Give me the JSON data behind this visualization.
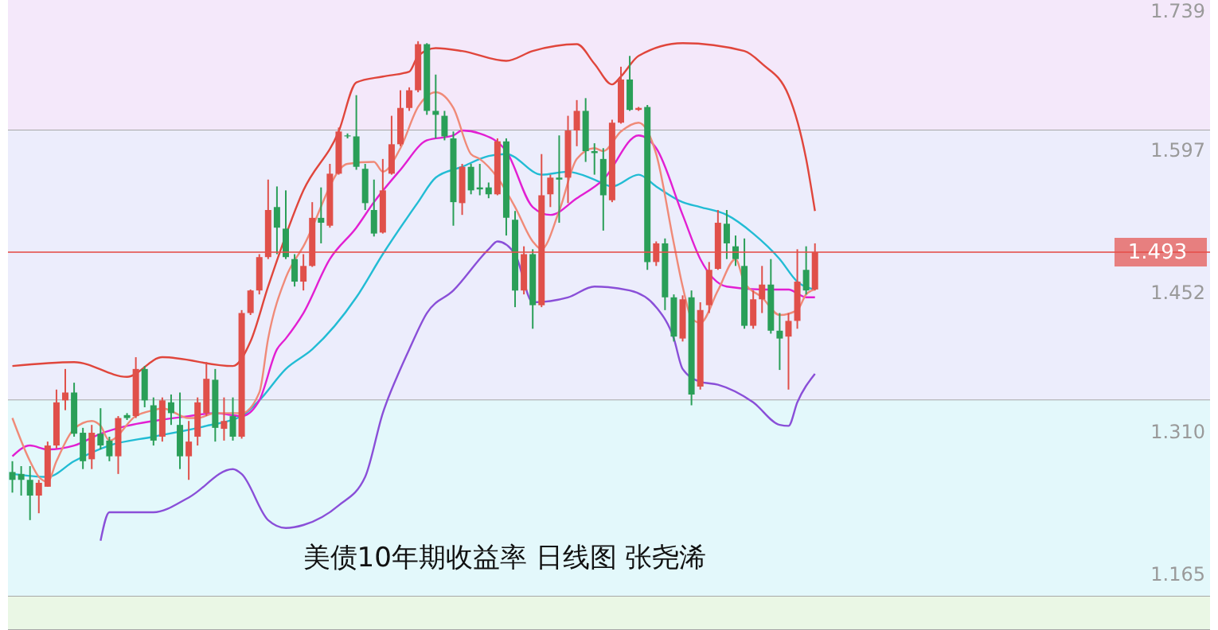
{
  "chart_data": {
    "type": "candlestick",
    "categories": [
      null,
      null,
      null,
      null,
      null,
      null,
      null,
      null,
      null,
      null,
      null,
      null,
      null,
      null,
      null,
      null,
      null,
      null,
      null,
      null,
      null,
      null,
      null,
      null,
      null,
      null,
      null,
      null,
      null,
      null,
      null,
      null,
      null,
      null,
      null,
      null,
      null,
      null,
      null,
      null,
      null,
      null,
      null,
      null,
      null,
      null,
      null,
      null,
      null,
      null,
      null,
      null,
      null,
      null,
      null,
      null,
      null,
      null,
      null,
      null,
      null,
      null,
      null,
      null,
      null,
      null,
      null,
      null,
      null,
      null,
      null,
      null,
      null,
      null,
      null,
      null,
      null,
      null,
      null,
      null,
      null,
      null,
      null,
      null,
      null,
      null,
      null,
      null,
      null,
      null,
      null,
      null
    ],
    "ohlc": [
      [
        1.269,
        1.28,
        1.248,
        1.261
      ],
      [
        1.267,
        1.275,
        1.245,
        1.261
      ],
      [
        1.261,
        1.275,
        1.22,
        1.245
      ],
      [
        1.245,
        1.261,
        1.227,
        1.258
      ],
      [
        1.254,
        1.3,
        1.254,
        1.296
      ],
      [
        1.296,
        1.353,
        1.293,
        1.34
      ],
      [
        1.342,
        1.374,
        1.332,
        1.35
      ],
      [
        1.35,
        1.36,
        1.305,
        1.308
      ],
      [
        1.309,
        1.314,
        1.272,
        1.28
      ],
      [
        1.282,
        1.317,
        1.272,
        1.309
      ],
      [
        1.308,
        1.334,
        1.292,
        1.296
      ],
      [
        1.301,
        1.305,
        1.28,
        1.285
      ],
      [
        1.285,
        1.326,
        1.267,
        1.324
      ],
      [
        1.327,
        1.329,
        1.322,
        1.324
      ],
      [
        1.326,
        1.386,
        1.324,
        1.374
      ],
      [
        1.374,
        1.377,
        1.335,
        1.342
      ],
      [
        1.337,
        1.345,
        1.296,
        1.301
      ],
      [
        1.305,
        1.345,
        1.3,
        1.342
      ],
      [
        1.34,
        1.348,
        1.317,
        1.329
      ],
      [
        1.317,
        1.35,
        1.272,
        1.285
      ],
      [
        1.285,
        1.321,
        1.261,
        1.3
      ],
      [
        1.305,
        1.345,
        1.296,
        1.34
      ],
      [
        1.329,
        1.381,
        1.326,
        1.364
      ],
      [
        1.363,
        1.374,
        1.3,
        1.314
      ],
      [
        1.313,
        1.345,
        1.301,
        1.321
      ],
      [
        1.326,
        1.345,
        1.301,
        1.305
      ],
      [
        1.305,
        1.434,
        1.303,
        1.431
      ],
      [
        1.431,
        1.455,
        1.429,
        1.454
      ],
      [
        1.454,
        1.491,
        1.45,
        1.488
      ],
      [
        1.488,
        1.567,
        1.486,
        1.536
      ],
      [
        1.539,
        1.56,
        1.491,
        1.518
      ],
      [
        1.517,
        1.556,
        1.486,
        1.488
      ],
      [
        1.486,
        1.491,
        1.458,
        1.463
      ],
      [
        1.463,
        1.491,
        1.454,
        1.479
      ],
      [
        1.479,
        1.544,
        1.478,
        1.528
      ],
      [
        1.528,
        1.559,
        1.502,
        1.523
      ],
      [
        1.52,
        1.583,
        1.518,
        1.573
      ],
      [
        1.573,
        1.62,
        1.572,
        1.616
      ],
      [
        1.612,
        1.614,
        1.609,
        1.611
      ],
      [
        1.611,
        1.653,
        1.577,
        1.58
      ],
      [
        1.578,
        1.583,
        1.536,
        1.543
      ],
      [
        1.536,
        1.567,
        1.509,
        1.512
      ],
      [
        1.513,
        1.588,
        1.512,
        1.556
      ],
      [
        1.573,
        1.632,
        1.572,
        1.603
      ],
      [
        1.603,
        1.658,
        1.601,
        1.64
      ],
      [
        1.64,
        1.661,
        1.637,
        1.658
      ],
      [
        1.658,
        1.708,
        1.656,
        1.705
      ],
      [
        1.705,
        1.706,
        1.633,
        1.637
      ],
      [
        1.637,
        1.674,
        1.609,
        1.633
      ],
      [
        1.632,
        1.637,
        1.607,
        1.611
      ],
      [
        1.609,
        1.616,
        1.52,
        1.544
      ],
      [
        1.543,
        1.583,
        1.531,
        1.58
      ],
      [
        1.58,
        1.583,
        1.552,
        1.556
      ],
      [
        1.559,
        1.583,
        1.551,
        1.557
      ],
      [
        1.559,
        1.564,
        1.548,
        1.552
      ],
      [
        1.552,
        1.609,
        1.551,
        1.606
      ],
      [
        1.606,
        1.609,
        1.51,
        1.528
      ],
      [
        1.526,
        1.535,
        1.437,
        1.454
      ],
      [
        1.454,
        1.499,
        1.45,
        1.491
      ],
      [
        1.491,
        1.496,
        1.415,
        1.439
      ],
      [
        1.439,
        1.593,
        1.437,
        1.551
      ],
      [
        1.552,
        1.572,
        1.539,
        1.569
      ],
      [
        1.569,
        1.612,
        1.523,
        1.567
      ],
      [
        1.569,
        1.632,
        1.543,
        1.617
      ],
      [
        1.617,
        1.648,
        1.601,
        1.637
      ],
      [
        1.637,
        1.65,
        1.585,
        1.596
      ],
      [
        1.596,
        1.604,
        1.572,
        1.594
      ],
      [
        1.588,
        1.599,
        1.515,
        1.551
      ],
      [
        1.546,
        1.628,
        1.544,
        1.625
      ],
      [
        1.625,
        1.682,
        1.624,
        1.669
      ],
      [
        1.669,
        1.693,
        1.637,
        1.638
      ],
      [
        1.638,
        1.641,
        1.637,
        1.64
      ],
      [
        1.641,
        1.643,
        1.475,
        1.483
      ],
      [
        1.483,
        1.504,
        1.479,
        1.502
      ],
      [
        1.502,
        1.507,
        1.434,
        1.447
      ],
      [
        1.447,
        1.45,
        1.402,
        1.407
      ],
      [
        1.405,
        1.449,
        1.402,
        1.445
      ],
      [
        1.447,
        1.454,
        1.337,
        1.348
      ],
      [
        1.356,
        1.442,
        1.353,
        1.434
      ],
      [
        1.439,
        1.483,
        1.431,
        1.475
      ],
      [
        1.476,
        1.536,
        1.475,
        1.523
      ],
      [
        1.522,
        1.536,
        1.486,
        1.502
      ],
      [
        1.499,
        1.51,
        1.479,
        1.486
      ],
      [
        1.479,
        1.507,
        1.415,
        1.418
      ],
      [
        1.418,
        1.454,
        1.415,
        1.445
      ],
      [
        1.445,
        1.479,
        1.431,
        1.46
      ],
      [
        1.46,
        1.486,
        1.41,
        1.413
      ],
      [
        1.413,
        1.431,
        1.373,
        1.405
      ],
      [
        1.407,
        1.431,
        1.353,
        1.423
      ],
      [
        1.423,
        1.496,
        1.415,
        1.463
      ],
      [
        1.475,
        1.499,
        1.45,
        1.454
      ],
      [
        1.455,
        1.502,
        1.454,
        1.493
      ]
    ],
    "series": [
      {
        "type": "line",
        "color": "#e0463c",
        "values": [
          1.377,
          null,
          null,
          null,
          null,
          null,
          null,
          1.381,
          null,
          null,
          null,
          null,
          null,
          1.366,
          null,
          null,
          null,
          1.386,
          null,
          null,
          null,
          null,
          null,
          null,
          null,
          1.377,
          null,
          1.402,
          null,
          1.458,
          null,
          null,
          null,
          1.556,
          null,
          null,
          null,
          1.616,
          null,
          1.666,
          null,
          null,
          1.672,
          null,
          null,
          1.677,
          1.693,
          null,
          1.701,
          null,
          null,
          1.698,
          null,
          null,
          null,
          null,
          1.688,
          null,
          null,
          1.698,
          null,
          null,
          null,
          null,
          1.705,
          null,
          1.685,
          null,
          1.664,
          1.672,
          null,
          1.693,
          null,
          null,
          null,
          null,
          1.706,
          null,
          null,
          null,
          null,
          null,
          null,
          1.698,
          null,
          1.685,
          null,
          null,
          1.653,
          null,
          1.588,
          1.535
        ]
      },
      {
        "type": "line",
        "color": "#8a4fd8",
        "values": [
          null,
          null,
          null,
          null,
          null,
          null,
          null,
          null,
          null,
          null,
          1.199,
          1.228,
          null,
          null,
          null,
          null,
          1.228,
          null,
          null,
          null,
          1.243,
          null,
          null,
          null,
          null,
          1.272,
          1.267,
          null,
          null,
          1.22,
          null,
          1.212,
          null,
          1.215,
          null,
          null,
          null,
          1.235,
          null,
          null,
          1.264,
          null,
          1.329,
          null,
          1.374,
          1.394,
          null,
          1.431,
          null,
          null,
          1.454,
          null,
          null,
          null,
          1.496,
          1.504,
          null,
          1.491,
          null,
          1.442,
          null,
          null,
          null,
          1.447,
          null,
          null,
          1.458,
          null,
          null,
          null,
          1.454,
          null,
          null,
          1.437,
          null,
          1.405,
          1.374,
          null,
          1.361,
          null,
          1.358,
          null,
          null,
          null,
          1.34,
          null,
          null,
          1.317,
          1.316,
          1.34,
          null,
          1.369
        ]
      },
      {
        "type": "line",
        "color": "#22bcd4",
        "values": [
          1.267,
          null,
          null,
          null,
          1.264,
          null,
          null,
          1.28,
          null,
          null,
          null,
          1.296,
          null,
          null,
          null,
          null,
          1.305,
          null,
          null,
          null,
          null,
          null,
          1.316,
          null,
          null,
          null,
          1.326,
          null,
          1.342,
          null,
          null,
          1.374,
          null,
          null,
          1.394,
          null,
          null,
          null,
          null,
          1.447,
          null,
          null,
          1.491,
          null,
          null,
          null,
          1.544,
          null,
          1.569,
          null,
          null,
          1.58,
          null,
          null,
          1.591,
          null,
          1.593,
          null,
          null,
          null,
          1.572,
          null,
          null,
          1.575,
          null,
          null,
          1.567,
          null,
          1.56,
          null,
          null,
          1.572,
          null,
          1.56,
          null,
          null,
          1.544,
          null,
          1.539,
          null,
          null,
          1.531,
          null,
          null,
          1.512,
          null,
          null,
          1.486,
          null,
          1.463,
          null,
          1.455
        ]
      },
      {
        "type": "line",
        "color": "#e21fd2",
        "values": [
          1.285,
          null,
          1.296,
          null,
          1.292,
          null,
          null,
          1.296,
          null,
          null,
          1.308,
          null,
          null,
          1.316,
          null,
          null,
          1.321,
          null,
          null,
          null,
          1.326,
          null,
          null,
          1.329,
          null,
          null,
          1.326,
          null,
          1.342,
          null,
          1.394,
          1.405,
          null,
          1.431,
          null,
          null,
          1.486,
          null,
          null,
          1.518,
          null,
          1.544,
          null,
          null,
          1.577,
          null,
          null,
          1.607,
          null,
          null,
          1.612,
          1.617,
          null,
          1.614,
          null,
          null,
          1.596,
          null,
          null,
          1.539,
          null,
          1.531,
          null,
          null,
          1.548,
          null,
          null,
          1.567,
          null,
          null,
          null,
          1.612,
          null,
          1.599,
          null,
          null,
          1.531,
          null,
          1.486,
          null,
          null,
          1.458,
          null,
          null,
          null,
          1.455,
          null,
          null,
          1.455,
          null,
          1.447,
          1.447
        ]
      },
      {
        "type": "line",
        "color": "#f08a78",
        "values": [
          1.324,
          null,
          1.28,
          1.264,
          1.259,
          1.28,
          null,
          1.313,
          null,
          1.321,
          1.316,
          1.301,
          null,
          null,
          1.326,
          null,
          1.332,
          1.334,
          null,
          null,
          1.324,
          1.324,
          null,
          1.329,
          null,
          null,
          1.329,
          null,
          1.35,
          1.405,
          null,
          1.467,
          null,
          1.499,
          null,
          null,
          null,
          null,
          1.583,
          null,
          null,
          1.585,
          1.575,
          null,
          1.599,
          null,
          1.641,
          null,
          1.656,
          null,
          1.64,
          null,
          1.593,
          1.588,
          null,
          1.569,
          null,
          1.539,
          null,
          1.504,
          1.496,
          null,
          1.535,
          null,
          1.588,
          null,
          1.599,
          1.596,
          null,
          1.616,
          null,
          1.625,
          null,
          1.593,
          null,
          1.502,
          1.458,
          1.426,
          1.421,
          null,
          1.454,
          null,
          1.486,
          1.462,
          null,
          1.447,
          null,
          1.429,
          null,
          1.434,
          1.45,
          1.455
        ]
      }
    ],
    "ylim": [
      1.108,
      1.75
    ],
    "yticks": [
      1.165,
      {
        "value": 1.31,
        "label": "1.310"
      },
      1.452,
      1.597,
      1.739
    ],
    "tick_labels": "y",
    "grid": false,
    "bands": [
      {
        "axis": "y",
        "from": 1.617,
        "to": 1.75,
        "label": null,
        "color": "#f4e8fa"
      },
      {
        "axis": "y",
        "from": 1.342,
        "to": 1.617,
        "label": null,
        "color": "#ecedfc"
      },
      {
        "axis": "y",
        "from": 1.142,
        "to": 1.342,
        "label": null,
        "color": "#e3f8fb"
      },
      {
        "axis": "y",
        "from": 1.108,
        "to": 1.142,
        "label": null,
        "color": "#eaf7e5"
      }
    ],
    "ref_lines": [
      {
        "axis": "y",
        "value": 1.493,
        "label": "1.493",
        "color": "#e5504a"
      }
    ],
    "annotations": [
      "美债10年期收益率  日线图  张尧浠"
    ]
  }
}
